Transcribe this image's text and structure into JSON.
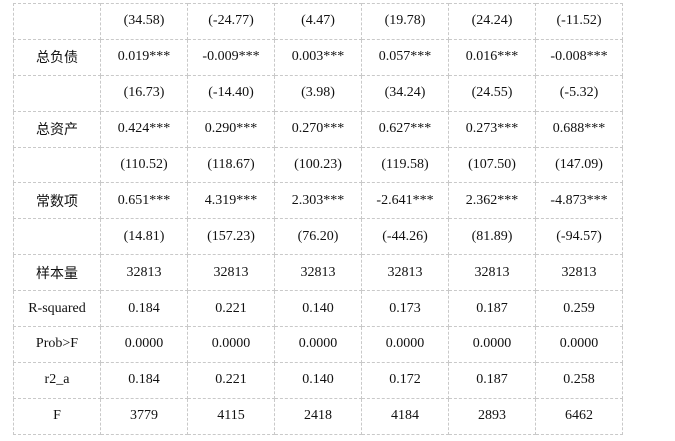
{
  "table": {
    "rows": [
      {
        "label": "",
        "values": [
          "(34.58)",
          "(-24.77)",
          "(4.47)",
          "(19.78)",
          "(24.24)",
          "(-11.52)"
        ]
      },
      {
        "label": "总负债",
        "values": [
          "0.019***",
          "-0.009***",
          "0.003***",
          "0.057***",
          "0.016***",
          "-0.008***"
        ]
      },
      {
        "label": "",
        "values": [
          "(16.73)",
          "(-14.40)",
          "(3.98)",
          "(34.24)",
          "(24.55)",
          "(-5.32)"
        ]
      },
      {
        "label": "总资产",
        "values": [
          "0.424***",
          "0.290***",
          "0.270***",
          "0.627***",
          "0.273***",
          "0.688***"
        ]
      },
      {
        "label": "",
        "values": [
          "(110.52)",
          "(118.67)",
          "(100.23)",
          "(119.58)",
          "(107.50)",
          "(147.09)"
        ]
      },
      {
        "label": "常数项",
        "values": [
          "0.651***",
          "4.319***",
          "2.303***",
          "-2.641***",
          "2.362***",
          "-4.873***"
        ]
      },
      {
        "label": "",
        "values": [
          "(14.81)",
          "(157.23)",
          "(76.20)",
          "(-44.26)",
          "(81.89)",
          "(-94.57)"
        ]
      },
      {
        "label": "样本量",
        "values": [
          "32813",
          "32813",
          "32813",
          "32813",
          "32813",
          "32813"
        ]
      },
      {
        "label": "R-squared",
        "values": [
          "0.184",
          "0.221",
          "0.140",
          "0.173",
          "0.187",
          "0.259"
        ]
      },
      {
        "label": "Prob>F",
        "values": [
          "0.0000",
          "0.0000",
          "0.0000",
          "0.0000",
          "0.0000",
          "0.0000"
        ]
      },
      {
        "label": "r2_a",
        "values": [
          "0.184",
          "0.221",
          "0.140",
          "0.172",
          "0.187",
          "0.258"
        ]
      },
      {
        "label": "F",
        "values": [
          "3779",
          "4115",
          "2418",
          "4184",
          "2893",
          "6462"
        ]
      }
    ]
  }
}
